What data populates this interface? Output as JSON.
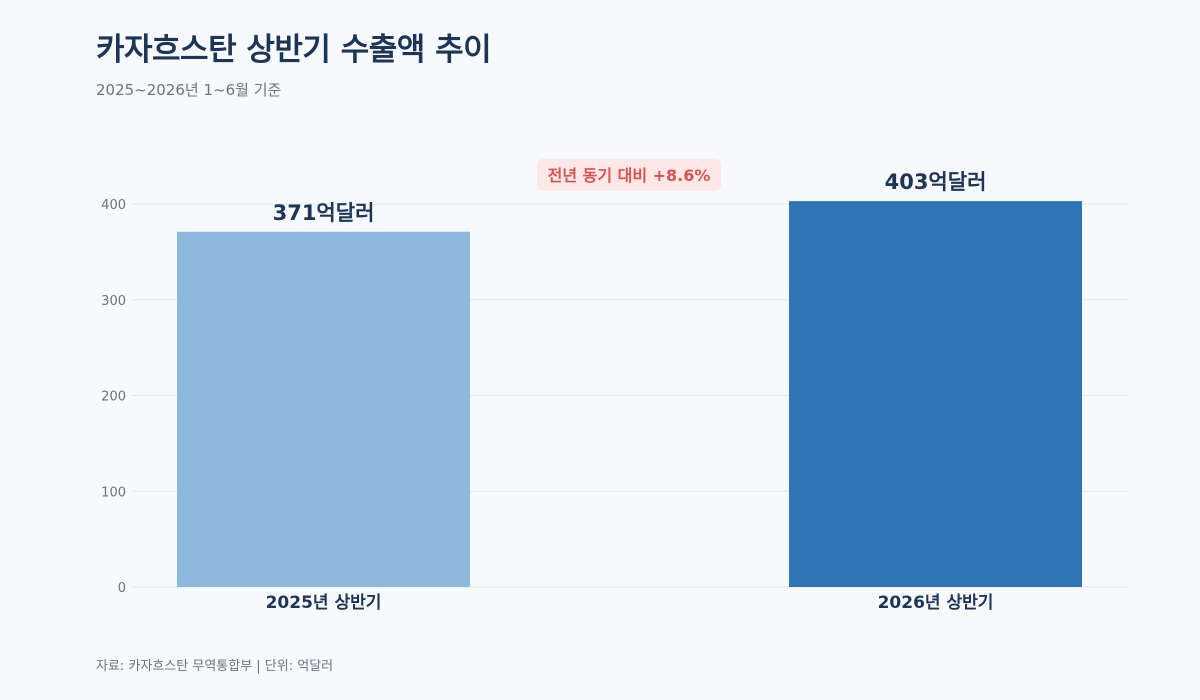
{
  "header": {
    "title": "카자흐스탄 상반기 수출액 추이",
    "subtitle": "2025~2026년 1~6월 기준"
  },
  "footer": {
    "source": "자료: 카자흐스탄 무역통합부 | 단위: 억달러"
  },
  "colors": {
    "bar_2025": "#8db8dd",
    "bar_2026": "#2e75b5",
    "annotation_text": "#d9534f",
    "annotation_bg": "#fde8e8",
    "grid": "#e2e6ec",
    "title": "#1d3557"
  },
  "chart_data": {
    "type": "bar",
    "categories": [
      "2025년 상반기",
      "2026년 상반기"
    ],
    "values": [
      371,
      403
    ],
    "value_labels": [
      "371억달러",
      "403억달러"
    ],
    "ylim": [
      0,
      400
    ],
    "yticks": [
      0,
      100,
      200,
      300,
      400
    ],
    "grid": true,
    "annotation": "전년 동기 대비 +8.6%"
  }
}
